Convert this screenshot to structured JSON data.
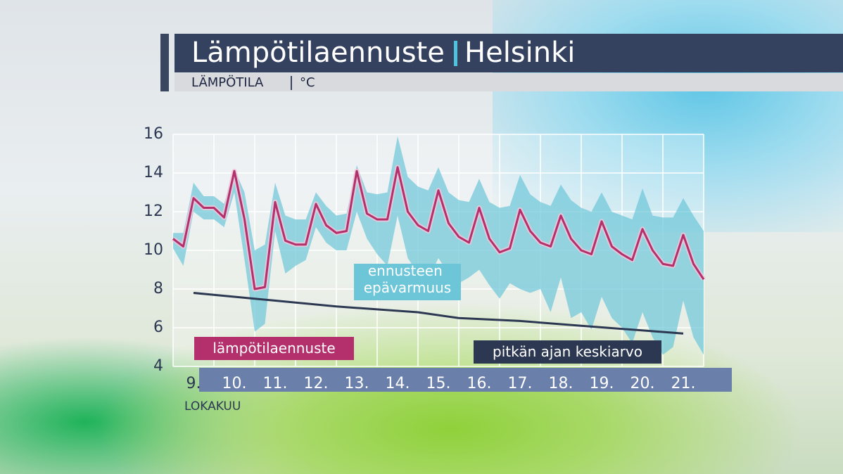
{
  "chart_data": {
    "type": "line",
    "title": "Lämpötilaennuste",
    "location": "Helsinki",
    "ylabel": "LÄMPÖTILA",
    "unit": "°C",
    "xlabel": "LOKAKUU",
    "categories": [
      "9.",
      "10.",
      "11.",
      "12.",
      "13.",
      "14.",
      "15.",
      "16.",
      "17.",
      "18.",
      "19.",
      "20.",
      "21."
    ],
    "xlim": [
      9,
      22
    ],
    "xticks": [
      9,
      10,
      11,
      12,
      13,
      14,
      15,
      16,
      17,
      18,
      19,
      20,
      21,
      22
    ],
    "ylim": [
      4,
      16
    ],
    "yticks": [
      4,
      6,
      8,
      10,
      12,
      14,
      16
    ],
    "grid": true,
    "x": [
      9,
      9.25,
      9.5,
      9.75,
      10,
      10.25,
      10.5,
      10.75,
      11,
      11.25,
      11.5,
      11.75,
      12,
      12.25,
      12.5,
      12.75,
      13,
      13.25,
      13.5,
      13.75,
      14,
      14.25,
      14.5,
      14.75,
      15,
      15.25,
      15.5,
      15.75,
      16,
      16.25,
      16.5,
      16.75,
      17,
      17.25,
      17.5,
      17.75,
      18,
      18.25,
      18.5,
      18.75,
      19,
      19.25,
      19.5,
      19.75,
      20,
      20.25,
      20.5,
      20.75,
      21,
      21.25,
      21.5,
      21.75,
      22
    ],
    "band": {
      "name": "ennusteen epävarmuus",
      "color": "#6cc6d8",
      "high": [
        10.9,
        10.9,
        13.5,
        12.8,
        12.8,
        12.4,
        14.2,
        13.0,
        10.0,
        10.3,
        13.5,
        11.8,
        11.6,
        11.6,
        13.0,
        12.3,
        11.8,
        11.9,
        14.4,
        13.0,
        12.9,
        13.0,
        15.9,
        13.8,
        13.3,
        13.1,
        14.3,
        13.0,
        12.6,
        12.5,
        13.7,
        12.5,
        12.2,
        12.3,
        13.9,
        12.9,
        12.5,
        12.3,
        13.4,
        12.6,
        12.2,
        12.0,
        13.0,
        12.0,
        11.8,
        11.6,
        13.2,
        11.8,
        11.7,
        11.7,
        12.7,
        11.8,
        11.0
      ],
      "low": [
        10.1,
        9.2,
        12.0,
        11.6,
        11.6,
        11.2,
        13.0,
        9.5,
        5.8,
        6.2,
        11.0,
        8.8,
        9.2,
        9.5,
        11.2,
        10.4,
        10.0,
        10.0,
        12.0,
        10.6,
        9.8,
        9.2,
        11.8,
        9.6,
        8.8,
        8.5,
        9.6,
        8.8,
        8.3,
        8.6,
        9.0,
        8.2,
        7.5,
        8.3,
        8.0,
        7.8,
        8.0,
        6.8,
        8.6,
        6.5,
        6.8,
        5.9,
        7.6,
        6.5,
        6.0,
        5.2,
        6.8,
        5.5,
        4.6,
        5.0,
        7.4,
        5.5,
        4.6
      ]
    },
    "series": [
      {
        "name": "lämpötilaennuste",
        "color": "#b3306c",
        "values": [
          10.6,
          10.2,
          12.7,
          12.2,
          12.2,
          11.7,
          14.1,
          11.6,
          8.0,
          8.1,
          12.5,
          10.5,
          10.3,
          10.3,
          12.4,
          11.3,
          10.9,
          11.0,
          14.1,
          11.9,
          11.6,
          11.6,
          14.3,
          12.0,
          11.3,
          11.0,
          13.1,
          11.4,
          10.7,
          10.4,
          12.2,
          10.6,
          9.9,
          10.1,
          12.1,
          11.0,
          10.4,
          10.2,
          11.8,
          10.6,
          10.0,
          9.8,
          11.5,
          10.2,
          9.8,
          9.5,
          11.1,
          10.0,
          9.3,
          9.2,
          10.8,
          9.3,
          8.5
        ]
      },
      {
        "name": "pitkän ajan keskiarvo",
        "color": "#2c3852",
        "x": [
          9.5,
          11,
          13,
          15,
          16,
          17.5,
          19,
          21.5
        ],
        "values": [
          7.8,
          7.5,
          7.1,
          6.8,
          6.5,
          6.35,
          6.1,
          5.7
        ]
      }
    ]
  }
}
